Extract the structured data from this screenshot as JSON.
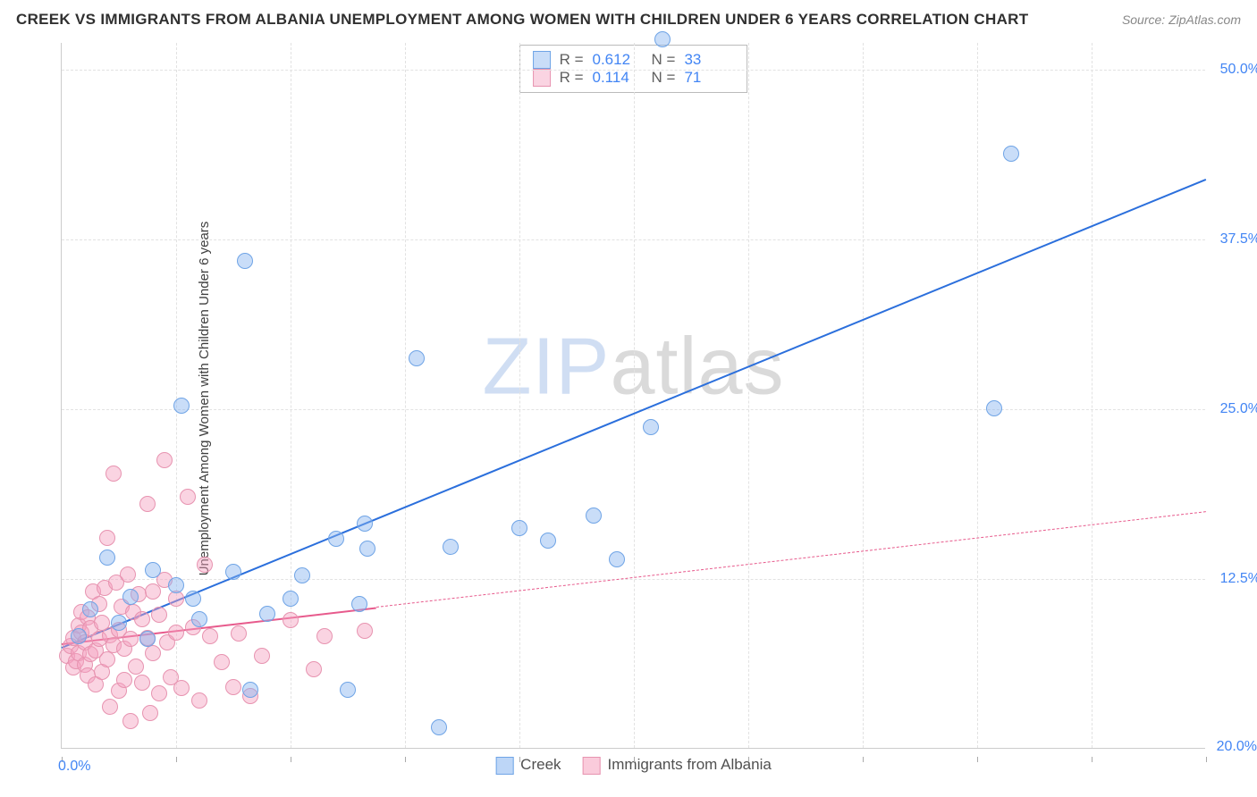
{
  "title": "CREEK VS IMMIGRANTS FROM ALBANIA UNEMPLOYMENT AMONG WOMEN WITH CHILDREN UNDER 6 YEARS CORRELATION CHART",
  "source": "Source: ZipAtlas.com",
  "ylabel": "Unemployment Among Women with Children Under 6 years",
  "watermark_a": "ZIP",
  "watermark_b": "atlas",
  "chart": {
    "type": "scatter",
    "xlim": [
      0,
      20
    ],
    "ylim": [
      0,
      52
    ],
    "x_ticks": [
      0,
      2,
      4,
      6,
      8,
      10,
      12,
      14,
      16,
      18,
      20
    ],
    "x_tick_labels": {
      "0": "0.0%",
      "20": "20.0%"
    },
    "y_tick_labels": [
      {
        "v": 12.5,
        "t": "12.5%"
      },
      {
        "v": 25.0,
        "t": "25.0%"
      },
      {
        "v": 37.5,
        "t": "37.5%"
      },
      {
        "v": 50.0,
        "t": "50.0%"
      }
    ],
    "grid_color": "#e2e2e2",
    "background": "#ffffff",
    "series": [
      {
        "name": "Creek",
        "color_fill": "rgba(135,180,240,0.45)",
        "color_stroke": "#6fa4e6",
        "line_color": "#2b6fdc",
        "point_radius": 9,
        "R": "0.612",
        "N": "33",
        "regression": {
          "x1": 0,
          "y1": 7.5,
          "x2": 20,
          "y2": 42,
          "solid": true,
          "solid_until_x": 20
        },
        "points": [
          [
            0.3,
            8.2
          ],
          [
            0.5,
            10.2
          ],
          [
            0.8,
            14.0
          ],
          [
            1.0,
            9.2
          ],
          [
            1.2,
            11.1
          ],
          [
            1.5,
            8.0
          ],
          [
            1.6,
            13.1
          ],
          [
            2.0,
            12.0
          ],
          [
            2.1,
            25.2
          ],
          [
            2.3,
            11.0
          ],
          [
            2.4,
            9.5
          ],
          [
            3.0,
            13.0
          ],
          [
            3.2,
            35.9
          ],
          [
            3.3,
            4.3
          ],
          [
            3.6,
            9.9
          ],
          [
            4.0,
            11.0
          ],
          [
            4.2,
            12.7
          ],
          [
            4.8,
            15.4
          ],
          [
            5.0,
            4.3
          ],
          [
            5.2,
            10.6
          ],
          [
            5.3,
            16.5
          ],
          [
            5.35,
            14.7
          ],
          [
            6.2,
            28.7
          ],
          [
            6.6,
            1.5
          ],
          [
            6.8,
            14.8
          ],
          [
            8.0,
            16.2
          ],
          [
            8.5,
            15.3
          ],
          [
            9.3,
            17.1
          ],
          [
            9.7,
            13.9
          ],
          [
            10.3,
            23.6
          ],
          [
            10.5,
            52.2
          ],
          [
            16.3,
            25.0
          ],
          [
            16.6,
            43.8
          ]
        ]
      },
      {
        "name": "Immigrants from Albania",
        "color_fill": "rgba(245,160,190,0.45)",
        "color_stroke": "#e793b0",
        "line_color": "#e75a8c",
        "point_radius": 9,
        "R": "0.114",
        "N": "71",
        "regression": {
          "x1": 0,
          "y1": 7.8,
          "x2": 20,
          "y2": 17.5,
          "solid": true,
          "solid_until_x": 5.5
        },
        "points": [
          [
            0.1,
            6.8
          ],
          [
            0.15,
            7.5
          ],
          [
            0.2,
            5.9
          ],
          [
            0.2,
            8.1
          ],
          [
            0.25,
            6.4
          ],
          [
            0.3,
            9.0
          ],
          [
            0.3,
            7.0
          ],
          [
            0.35,
            8.5
          ],
          [
            0.35,
            10.0
          ],
          [
            0.4,
            6.1
          ],
          [
            0.4,
            7.8
          ],
          [
            0.45,
            5.3
          ],
          [
            0.45,
            9.6
          ],
          [
            0.5,
            8.8
          ],
          [
            0.5,
            6.9
          ],
          [
            0.55,
            11.5
          ],
          [
            0.6,
            7.2
          ],
          [
            0.6,
            4.7
          ],
          [
            0.65,
            8.0
          ],
          [
            0.65,
            10.6
          ],
          [
            0.7,
            5.6
          ],
          [
            0.7,
            9.2
          ],
          [
            0.75,
            11.8
          ],
          [
            0.8,
            6.5
          ],
          [
            0.8,
            15.5
          ],
          [
            0.85,
            3.0
          ],
          [
            0.85,
            8.3
          ],
          [
            0.9,
            7.6
          ],
          [
            0.9,
            20.2
          ],
          [
            0.95,
            12.2
          ],
          [
            1.0,
            4.2
          ],
          [
            1.0,
            8.7
          ],
          [
            1.05,
            10.4
          ],
          [
            1.1,
            5.0
          ],
          [
            1.1,
            7.3
          ],
          [
            1.15,
            12.8
          ],
          [
            1.2,
            8.0
          ],
          [
            1.2,
            2.0
          ],
          [
            1.25,
            10.0
          ],
          [
            1.3,
            6.0
          ],
          [
            1.35,
            11.3
          ],
          [
            1.4,
            4.8
          ],
          [
            1.4,
            9.5
          ],
          [
            1.5,
            18.0
          ],
          [
            1.5,
            8.1
          ],
          [
            1.55,
            2.6
          ],
          [
            1.6,
            11.5
          ],
          [
            1.6,
            7.0
          ],
          [
            1.7,
            9.8
          ],
          [
            1.7,
            4.0
          ],
          [
            1.8,
            12.4
          ],
          [
            1.8,
            21.2
          ],
          [
            1.85,
            7.8
          ],
          [
            1.9,
            5.2
          ],
          [
            2.0,
            8.5
          ],
          [
            2.0,
            11.0
          ],
          [
            2.1,
            4.4
          ],
          [
            2.2,
            18.5
          ],
          [
            2.3,
            8.9
          ],
          [
            2.4,
            3.5
          ],
          [
            2.5,
            13.5
          ],
          [
            2.6,
            8.2
          ],
          [
            2.8,
            6.3
          ],
          [
            3.0,
            4.5
          ],
          [
            3.1,
            8.4
          ],
          [
            3.3,
            3.8
          ],
          [
            3.5,
            6.8
          ],
          [
            4.0,
            9.4
          ],
          [
            4.4,
            5.8
          ],
          [
            4.6,
            8.2
          ],
          [
            5.3,
            8.6
          ]
        ]
      }
    ]
  },
  "legend_bottom": [
    {
      "label": "Creek",
      "fill": "rgba(135,180,240,0.55)",
      "stroke": "#6fa4e6"
    },
    {
      "label": "Immigrants from Albania",
      "fill": "rgba(245,160,190,0.55)",
      "stroke": "#e793b0"
    }
  ]
}
